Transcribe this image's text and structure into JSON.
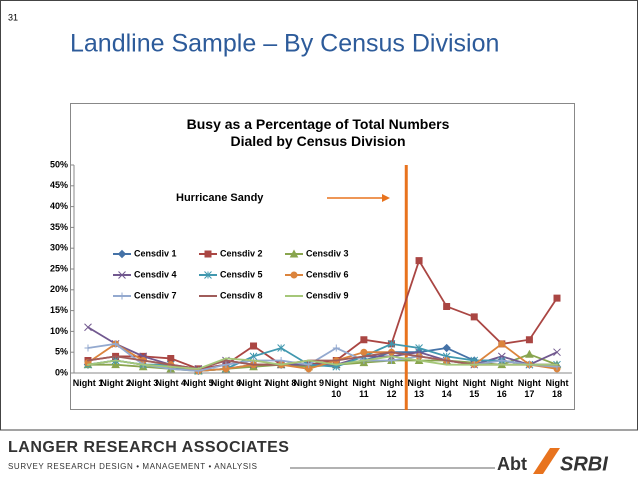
{
  "slide": {
    "number": "31",
    "heading": "Landline Sample – By Census Division",
    "footer_left_title": "LANGER RESEARCH ASSOCIATES",
    "footer_left_subtitle": "SURVEY RESEARCH DESIGN • MANAGEMENT • ANALYSIS",
    "footer_right_a": "Abt",
    "footer_right_b": "SRBI"
  },
  "chart_data": {
    "type": "line",
    "title": "Busy as a Percentage of Total Numbers Dialed by Census Division",
    "annotation": "Hurricane Sandy",
    "categories": [
      "Night 1",
      "Night 2",
      "Night 3",
      "Night 4",
      "Night 5",
      "Night 6",
      "Night 7",
      "Night 8",
      "Night 9",
      "Night 10",
      "Night 11",
      "Night 12",
      "Night 13",
      "Night 14",
      "Night 15",
      "Night 16",
      "Night 17",
      "Night 18"
    ],
    "ylim": [
      0,
      50
    ],
    "yticks": [
      {
        "value": 0,
        "label": "0%"
      },
      {
        "value": 5,
        "label": "5%"
      },
      {
        "value": 10,
        "label": "10%"
      },
      {
        "value": 15,
        "label": "15%"
      },
      {
        "value": 20,
        "label": "20%"
      },
      {
        "value": 25,
        "label": "25%"
      },
      {
        "value": 30,
        "label": "30%"
      },
      {
        "value": 35,
        "label": "35%"
      },
      {
        "value": 40,
        "label": "40%"
      },
      {
        "value": 45,
        "label": "45%"
      },
      {
        "value": 50,
        "label": "50%"
      }
    ],
    "grid": false,
    "series": [
      {
        "name": "Censdiv 1",
        "color": "#4572a7",
        "marker": "diamond",
        "values": [
          2,
          3,
          2,
          1.5,
          0.5,
          1,
          2,
          2,
          2,
          2,
          3,
          5,
          5,
          6,
          3,
          3,
          2,
          1.5
        ]
      },
      {
        "name": "Censdiv 2",
        "color": "#aa4643",
        "marker": "square",
        "values": [
          3,
          4,
          4,
          3.5,
          1,
          2,
          6.5,
          2,
          2,
          3,
          8,
          7,
          27,
          16,
          13.5,
          7,
          8,
          18
        ]
      },
      {
        "name": "Censdiv 3",
        "color": "#89a54e",
        "marker": "triangle",
        "values": [
          2,
          2,
          1.5,
          1,
          0.5,
          1,
          1.5,
          2,
          1.5,
          2,
          2.5,
          3,
          3,
          3,
          2.5,
          2,
          4.5,
          2
        ]
      },
      {
        "name": "Censdiv 4",
        "color": "#71588f",
        "marker": "x",
        "values": [
          11,
          7,
          4,
          2,
          1,
          3,
          2,
          2,
          2,
          2,
          4,
          4,
          5,
          3,
          2,
          4,
          2,
          5
        ]
      },
      {
        "name": "Censdiv 5",
        "color": "#4198af",
        "marker": "star",
        "values": [
          2,
          3,
          2,
          2,
          0.5,
          1,
          4,
          6,
          2,
          1.5,
          4,
          7,
          6,
          4,
          3,
          3,
          2,
          2
        ]
      },
      {
        "name": "Censdiv 6",
        "color": "#db843d",
        "marker": "circle",
        "values": [
          2.5,
          7,
          3,
          2,
          0.5,
          1,
          2,
          2,
          1,
          3,
          5,
          5,
          4,
          3,
          2,
          7,
          2,
          1
        ]
      },
      {
        "name": "Censdiv 7",
        "color": "#93a9cf",
        "marker": "plus",
        "values": [
          6,
          7,
          2,
          1,
          0.5,
          2,
          3,
          3,
          2,
          6,
          3,
          3,
          4,
          3,
          2,
          3,
          2,
          1.5
        ]
      },
      {
        "name": "Censdiv 8",
        "color": "#a05c5a",
        "marker": "none",
        "values": [
          3,
          4,
          3,
          2,
          1,
          3,
          2,
          2,
          3,
          3,
          4,
          5,
          4,
          3,
          2,
          2,
          2,
          2
        ]
      },
      {
        "name": "Censdiv 9",
        "color": "#a5c779",
        "marker": "none",
        "values": [
          2,
          3,
          2,
          1.5,
          1,
          3.5,
          3,
          2,
          3,
          2,
          3,
          4,
          3,
          2,
          2,
          2,
          2,
          2
        ]
      }
    ]
  }
}
